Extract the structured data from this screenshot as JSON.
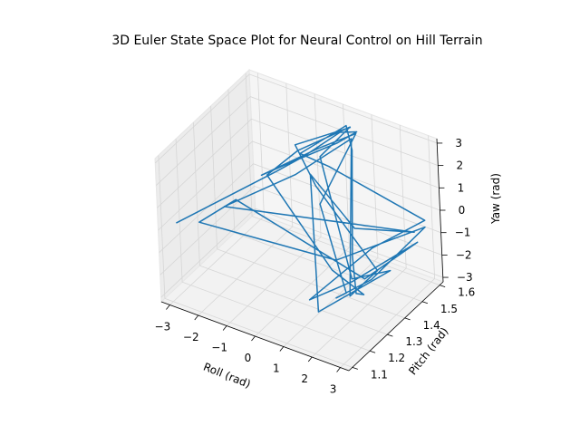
{
  "chart_data": {
    "type": "line",
    "projection": "3d",
    "title": "3D Euler State Space Plot for Neural Control on Hill Terrain",
    "xlabel": "Roll (rad)",
    "ylabel": "Pitch (rad)",
    "zlabel": "Yaw (rad)",
    "xlim": [
      -3.3,
      3.3
    ],
    "ylim": [
      1.08,
      1.62
    ],
    "zlim": [
      -3.2,
      3.2
    ],
    "xticks": [
      "−3",
      "−2",
      "−1",
      "0",
      "1",
      "2",
      "3"
    ],
    "yticks": [
      "1.1",
      "1.2",
      "1.3",
      "1.4",
      "1.5",
      "1.6"
    ],
    "zticks": [
      "−3",
      "−2",
      "−1",
      "0",
      "1",
      "2",
      "3"
    ],
    "grid": true,
    "series": [
      {
        "color": "#1f77b4",
        "points": [
          [
            -3.1,
            1.15,
            -0.1
          ],
          [
            -1.2,
            1.42,
            1.1
          ],
          [
            -0.6,
            1.48,
            1.6
          ],
          [
            0.3,
            1.55,
            2.6
          ],
          [
            0.9,
            1.55,
            2.9
          ],
          [
            0.4,
            1.52,
            2.4
          ],
          [
            -0.8,
            1.45,
            1.5
          ],
          [
            -1.6,
            1.4,
            0.9
          ],
          [
            -0.2,
            1.5,
            2.0
          ],
          [
            0.8,
            1.56,
            2.7
          ],
          [
            1.1,
            1.3,
            1.6
          ],
          [
            1.9,
            1.3,
            -2.0
          ],
          [
            1.4,
            1.32,
            -2.6
          ],
          [
            2.3,
            1.38,
            -1.8
          ],
          [
            3.0,
            1.58,
            -0.6
          ],
          [
            1.2,
            1.36,
            -1.3
          ],
          [
            -2.6,
            1.2,
            -0.2
          ],
          [
            -1.9,
            1.3,
            0.4
          ],
          [
            1.8,
            1.42,
            -2.3
          ],
          [
            2.9,
            1.55,
            -1.1
          ],
          [
            1.5,
            1.4,
            -2.4
          ],
          [
            0.9,
            1.25,
            -2.4
          ],
          [
            1.6,
            1.5,
            -1.6
          ],
          [
            3.0,
            1.58,
            -0.3
          ],
          [
            0.5,
            1.45,
            1.9
          ],
          [
            -0.7,
            1.48,
            1.7
          ],
          [
            0.4,
            1.57,
            2.8
          ],
          [
            0.9,
            1.52,
            2.3
          ],
          [
            1.2,
            1.45,
            -1.8
          ],
          [
            1.6,
            1.4,
            -2.9
          ],
          [
            2.2,
            1.35,
            -2.3
          ],
          [
            1.3,
            1.32,
            -1.4
          ],
          [
            -1.4,
            1.4,
            1.0
          ],
          [
            -0.9,
            1.5,
            1.6
          ],
          [
            0.6,
            1.56,
            2.9
          ],
          [
            0.2,
            1.45,
            2.2
          ],
          [
            1.6,
            1.38,
            -2.1
          ],
          [
            2.6,
            1.44,
            -1.7
          ],
          [
            1.2,
            1.25,
            -2.8
          ],
          [
            0.8,
            1.3,
            2.8
          ],
          [
            1.0,
            1.5,
            -1.0
          ],
          [
            2.8,
            1.55,
            -0.7
          ],
          [
            -2.2,
            1.28,
            0.1
          ],
          [
            -0.5,
            1.42,
            1.3
          ],
          [
            0.7,
            1.55,
            2.5
          ],
          [
            1.7,
            1.35,
            -2.6
          ],
          [
            2.4,
            1.4,
            -1.5
          ],
          [
            0.0,
            1.45,
            0.8
          ],
          [
            -1.0,
            1.5,
            1.8
          ],
          [
            0.5,
            1.58,
            2.7
          ]
        ]
      }
    ]
  }
}
